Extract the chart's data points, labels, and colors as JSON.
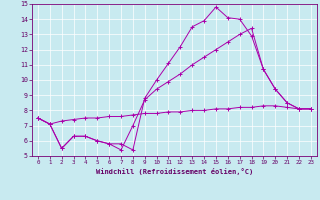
{
  "xlabel": "Windchill (Refroidissement éolien,°C)",
  "xlim": [
    -0.5,
    23.5
  ],
  "ylim": [
    5,
    15
  ],
  "yticks": [
    5,
    6,
    7,
    8,
    9,
    10,
    11,
    12,
    13,
    14,
    15
  ],
  "xticks": [
    0,
    1,
    2,
    3,
    4,
    5,
    6,
    7,
    8,
    9,
    10,
    11,
    12,
    13,
    14,
    15,
    16,
    17,
    18,
    19,
    20,
    21,
    22,
    23
  ],
  "background_color": "#c8eaf0",
  "grid_color": "#ffffff",
  "line_color": "#aa00aa",
  "line1_x": [
    0,
    1,
    2,
    3,
    4,
    5,
    6,
    7,
    8,
    9,
    10,
    11,
    12,
    13,
    14,
    15,
    16,
    17,
    18,
    19,
    20,
    21,
    22,
    23
  ],
  "line1_y": [
    7.5,
    7.1,
    5.5,
    6.3,
    6.3,
    6.0,
    5.8,
    5.8,
    5.4,
    8.8,
    10.0,
    11.1,
    12.2,
    13.5,
    13.9,
    14.8,
    14.1,
    14.0,
    12.9,
    10.7,
    9.4,
    8.5,
    8.1,
    8.1
  ],
  "line2_x": [
    0,
    1,
    2,
    3,
    4,
    5,
    6,
    7,
    8,
    9,
    10,
    11,
    12,
    13,
    14,
    15,
    16,
    17,
    18,
    19,
    20,
    21,
    22,
    23
  ],
  "line2_y": [
    7.5,
    7.1,
    5.5,
    6.3,
    6.3,
    6.0,
    5.8,
    5.4,
    7.0,
    8.7,
    9.4,
    9.9,
    10.4,
    11.0,
    11.5,
    12.0,
    12.5,
    13.0,
    13.4,
    10.7,
    9.4,
    8.5,
    8.1,
    8.1
  ],
  "line3_x": [
    0,
    1,
    2,
    3,
    4,
    5,
    6,
    7,
    8,
    9,
    10,
    11,
    12,
    13,
    14,
    15,
    16,
    17,
    18,
    19,
    20,
    21,
    22,
    23
  ],
  "line3_y": [
    7.5,
    7.1,
    7.3,
    7.4,
    7.5,
    7.5,
    7.6,
    7.6,
    7.7,
    7.8,
    7.8,
    7.9,
    7.9,
    8.0,
    8.0,
    8.1,
    8.1,
    8.2,
    8.2,
    8.3,
    8.3,
    8.2,
    8.1,
    8.1
  ]
}
